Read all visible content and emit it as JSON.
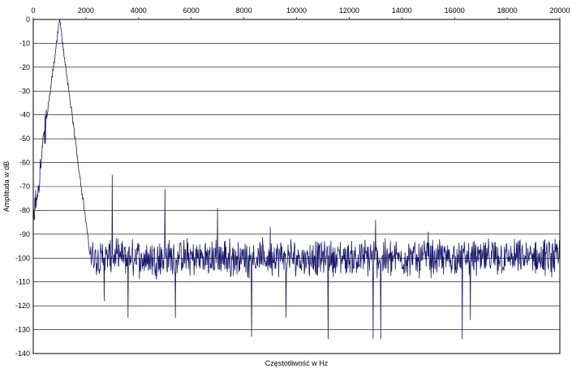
{
  "chart_data": {
    "type": "line",
    "title": "",
    "xlabel": "Częstotliwość w Hz",
    "ylabel": "Amplituda w dB",
    "xlim": [
      0,
      20000
    ],
    "ylim": [
      -140,
      0
    ],
    "x_ticks": [
      "0",
      "2000",
      "4000",
      "6000",
      "8000",
      "10000",
      "12000",
      "14000",
      "16000",
      "18000",
      "20000"
    ],
    "y_ticks": [
      "0",
      "-10",
      "-20",
      "-30",
      "-40",
      "-50",
      "-60",
      "-70",
      "-80",
      "-90",
      "-100",
      "-110",
      "-120",
      "-130",
      "-140"
    ],
    "x_tick_values": [
      0,
      2000,
      4000,
      6000,
      8000,
      10000,
      12000,
      14000,
      16000,
      18000,
      20000
    ],
    "y_tick_values": [
      0,
      -10,
      -20,
      -30,
      -40,
      -50,
      -60,
      -70,
      -80,
      -90,
      -100,
      -110,
      -120,
      -130,
      -140
    ],
    "grid": true,
    "legend": "none",
    "line_color": "#1a1a6e",
    "series": [
      {
        "noise_base": -100,
        "noise_amplitude": 6,
        "fundamental": {
          "frequency": 1000,
          "amplitude": 0
        },
        "harmonics": [
          {
            "frequency": 3000,
            "amplitude": -65
          },
          {
            "frequency": 5000,
            "amplitude": -71
          },
          {
            "frequency": 7000,
            "amplitude": -79
          },
          {
            "frequency": 9000,
            "amplitude": -87
          },
          {
            "frequency": 13000,
            "amplitude": -84
          },
          {
            "frequency": 15000,
            "amplitude": -89
          }
        ],
        "dips": [
          {
            "frequency": 2700,
            "amplitude": -118
          },
          {
            "frequency": 3600,
            "amplitude": -125
          },
          {
            "frequency": 5400,
            "amplitude": -125
          },
          {
            "frequency": 8300,
            "amplitude": -133
          },
          {
            "frequency": 9600,
            "amplitude": -125
          },
          {
            "frequency": 11200,
            "amplitude": -134
          },
          {
            "frequency": 12900,
            "amplitude": -134
          },
          {
            "frequency": 13200,
            "amplitude": -134
          },
          {
            "frequency": 16300,
            "amplitude": -134
          },
          {
            "frequency": 16600,
            "amplitude": -126
          }
        ]
      }
    ]
  }
}
